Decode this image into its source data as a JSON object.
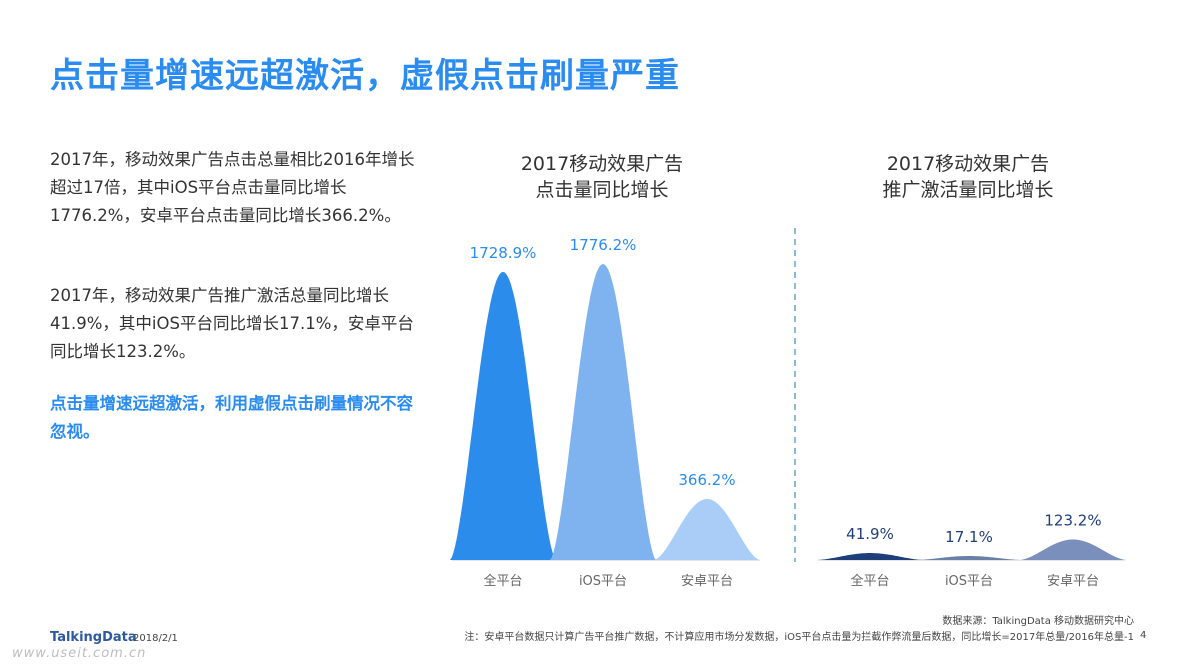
{
  "title": "点击量增速远超激活，虚假点击刷量严重",
  "paragraphs": {
    "p1": "2017年，移动效果广告点击总量相比2016年增长超过17倍，其中iOS平台点击量同比增长1776.2%，安卓平台点击量同比增长366.2%。",
    "p2": "2017年，移动效果广告推广激活总量同比增长41.9%，其中iOS平台同比增长17.1%，安卓平台同比增长123.2%。",
    "p3": "点击量增速远超激活，利用虚假点击刷量情况不容忽视。"
  },
  "chart_data": [
    {
      "type": "area",
      "title_line1": "2017移动效果广告",
      "title_line2": "点击量同比增长",
      "categories": [
        "全平台",
        "iOS平台",
        "安卓平台"
      ],
      "values": [
        1728.9,
        1776.2,
        366.2
      ],
      "labels": [
        "1728.9%",
        "1776.2%",
        "366.2%"
      ],
      "colors": [
        "#2b8ceb",
        "#7fb3f0",
        "#a9cdf6"
      ],
      "ylim": [
        0,
        1776.2
      ]
    },
    {
      "type": "area",
      "title_line1": "2017移动效果广告",
      "title_line2": "推广激活量同比增长",
      "categories": [
        "全平台",
        "iOS平台",
        "安卓平台"
      ],
      "values": [
        41.9,
        17.1,
        123.2
      ],
      "labels": [
        "41.9%",
        "17.1%",
        "123.2%"
      ],
      "colors": [
        "#1f3f7a",
        "#6a7fa6",
        "#7a8fbc"
      ],
      "ylim": [
        0,
        1776.2
      ]
    }
  ],
  "footer": {
    "source": "数据来源：TalkingData 移动数据研究中心",
    "note": "注：安卓平台数据只计算广告平台推广数据，不计算应用市场分发数据，iOS平台点击量为拦截作弊流量后数据，同比增长=2017年总量/2016年总量-1",
    "page": "4",
    "logo": "TalkingData",
    "date": "2018/2/1",
    "watermark": "www.useit.com.cn"
  }
}
